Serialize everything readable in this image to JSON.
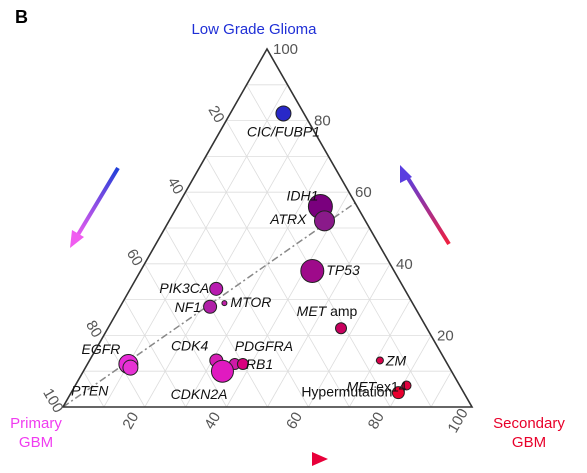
{
  "panel_letter": "B",
  "colors": {
    "lgg": "#1f2fd6",
    "primary": "#f03cf0",
    "secondary": "#e8002a",
    "grid": "#dddddd",
    "frame": "#333333",
    "trend_line": "#888888"
  },
  "vertices": {
    "top": "Low Grade Glioma",
    "left": [
      "Primary",
      "GBM"
    ],
    "right": [
      "Secondary",
      "GBM"
    ]
  },
  "chart_data": {
    "type": "ternary",
    "axes": {
      "lgg": {
        "ticks": [
          20,
          40,
          60,
          80,
          100
        ],
        "labels": [
          "20",
          "40",
          "60",
          "80",
          "100"
        ]
      },
      "primary": {
        "ticks": [
          20,
          40,
          60,
          80,
          100
        ],
        "labels": [
          "20",
          "40",
          "60",
          "80",
          "100"
        ]
      },
      "secondary": {
        "ticks": [
          20,
          40,
          60,
          80,
          100
        ],
        "labels": [
          "20",
          "40",
          "60",
          "80",
          "100"
        ]
      }
    },
    "grid": true,
    "trend_line": {
      "from": {
        "lgg": 0,
        "primary": 100,
        "secondary": 0
      },
      "to": {
        "lgg": 57,
        "primary": 0,
        "secondary": 43
      }
    },
    "points": [
      {
        "label": "CIC/FUBP1",
        "label_extra": "",
        "lgg": 82,
        "primary": 5,
        "secondary": 13,
        "size": 7.5,
        "color": "#2828c8"
      },
      {
        "label": "IDH1",
        "label_extra": "",
        "lgg": 56,
        "primary": 9,
        "secondary": 35,
        "size": 12,
        "color": "#7a007e"
      },
      {
        "label": "ATRX",
        "label_extra": "",
        "lgg": 52,
        "primary": 10,
        "secondary": 38,
        "size": 10,
        "color": "#8a1a8a"
      },
      {
        "label": "TP53",
        "label_extra": "",
        "lgg": 38,
        "primary": 20,
        "secondary": 42,
        "size": 11.5,
        "color": "#9e0a8a"
      },
      {
        "label": "PIK3CA",
        "label_extra": "",
        "lgg": 33,
        "primary": 46,
        "secondary": 21,
        "size": 6.5,
        "color": "#b81bb0"
      },
      {
        "label": "NF1",
        "label_extra": "",
        "lgg": 28,
        "primary": 50,
        "secondary": 22,
        "size": 6.5,
        "color": "#b01fa8"
      },
      {
        "label": "MTOR",
        "label_extra": "",
        "lgg": 29,
        "primary": 46,
        "secondary": 25,
        "size": 2.5,
        "color": "#c020a8"
      },
      {
        "label": "MET",
        "label_extra": "amp",
        "lgg": 22,
        "primary": 21,
        "secondary": 57,
        "size": 5.5,
        "color": "#c8005e"
      },
      {
        "label": "EGFR",
        "label_extra": "",
        "lgg": 12,
        "primary": 78,
        "secondary": 10,
        "size": 9.5,
        "color": "#e82bd8"
      },
      {
        "label": "PTEN",
        "label_extra": "",
        "lgg": 11,
        "primary": 78,
        "secondary": 11,
        "size": 7.5,
        "color": "#e632d4"
      },
      {
        "label": "CDK4",
        "label_extra": "",
        "lgg": 13,
        "primary": 56,
        "secondary": 31,
        "size": 6.5,
        "color": "#d51eb4"
      },
      {
        "label": "PDGFRA",
        "label_extra": "",
        "lgg": 12,
        "primary": 52,
        "secondary": 36,
        "size": 5.5,
        "color": "#d01aa8"
      },
      {
        "label": "RB1",
        "label_extra": "",
        "lgg": 12,
        "primary": 50,
        "secondary": 38,
        "size": 5.5,
        "color": "#d8007e"
      },
      {
        "label": "CDKN2A",
        "label_extra": "",
        "lgg": 10,
        "primary": 56,
        "secondary": 34,
        "size": 11,
        "color": "#e01ac0"
      },
      {
        "label": "ZM",
        "label_extra": "",
        "lgg": 13,
        "primary": 16,
        "secondary": 71,
        "size": 3.5,
        "color": "#d8004a"
      },
      {
        "label": "MET",
        "label_extra": "ex14",
        "lgg": 6,
        "primary": 13,
        "secondary": 81,
        "size": 4.5,
        "color": "#e0003e"
      },
      {
        "label": "Hypermutation",
        "label_extra": "",
        "lgg": 4,
        "primary": 16,
        "secondary": 80,
        "size": 6,
        "color": "#e8002e"
      }
    ]
  }
}
